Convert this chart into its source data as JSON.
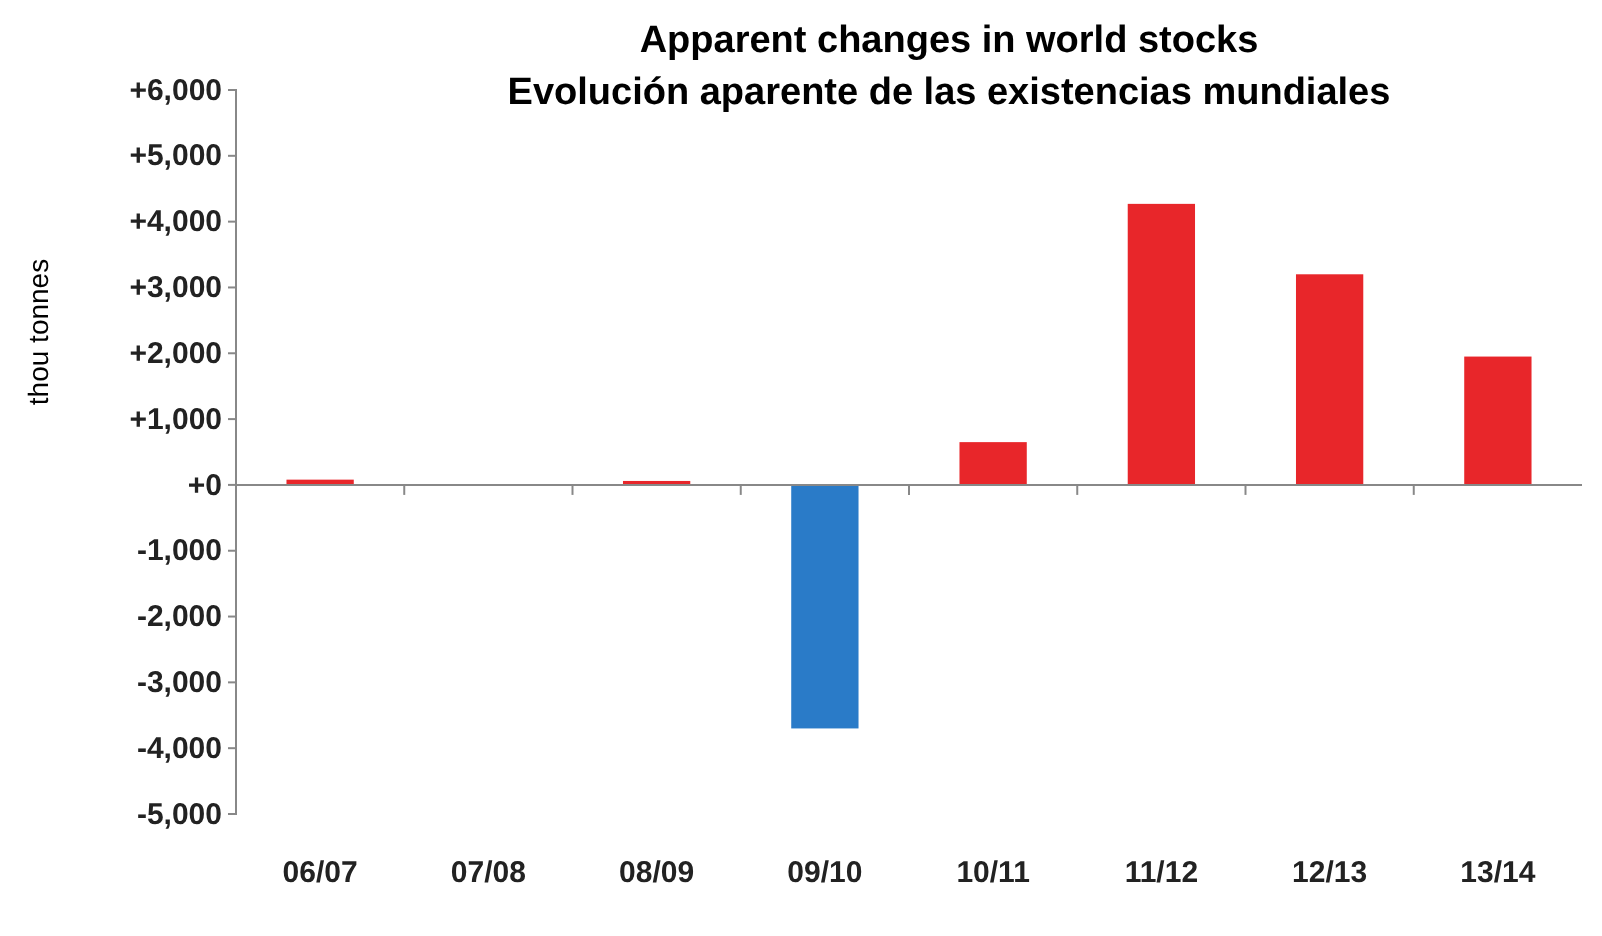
{
  "chart_data": {
    "type": "bar",
    "title": "Apparent changes in world stocks",
    "subtitle": "Evolución aparente de las existencias mundiales",
    "ylabel": "thou tonnes",
    "categories": [
      "06/07",
      "07/08",
      "08/09",
      "09/10",
      "10/11",
      "11/12",
      "12/13",
      "13/14"
    ],
    "values": [
      80,
      null,
      60,
      -3700,
      650,
      4270,
      3200,
      1950
    ],
    "colors": [
      "#e8262a",
      "#2a7bc8",
      "#e8262a",
      "#2a7bc8",
      "#e8262a",
      "#e8262a",
      "#e8262a",
      "#e8262a"
    ],
    "ylim": [
      -5000,
      6000
    ],
    "yticks": [
      {
        "value": -5000,
        "label": "-5,000"
      },
      {
        "value": -4000,
        "label": "-4,000"
      },
      {
        "value": -3000,
        "label": "-3,000"
      },
      {
        "value": -2000,
        "label": "-2,000"
      },
      {
        "value": -1000,
        "label": "-1,000"
      },
      {
        "value": 0,
        "label": "+0"
      },
      {
        "value": 1000,
        "label": "+1,000"
      },
      {
        "value": 2000,
        "label": "+2,000"
      },
      {
        "value": 3000,
        "label": "+3,000"
      },
      {
        "value": 4000,
        "label": "+4,000"
      },
      {
        "value": 5000,
        "label": "+5,000"
      },
      {
        "value": 6000,
        "label": "+6,000"
      }
    ]
  }
}
